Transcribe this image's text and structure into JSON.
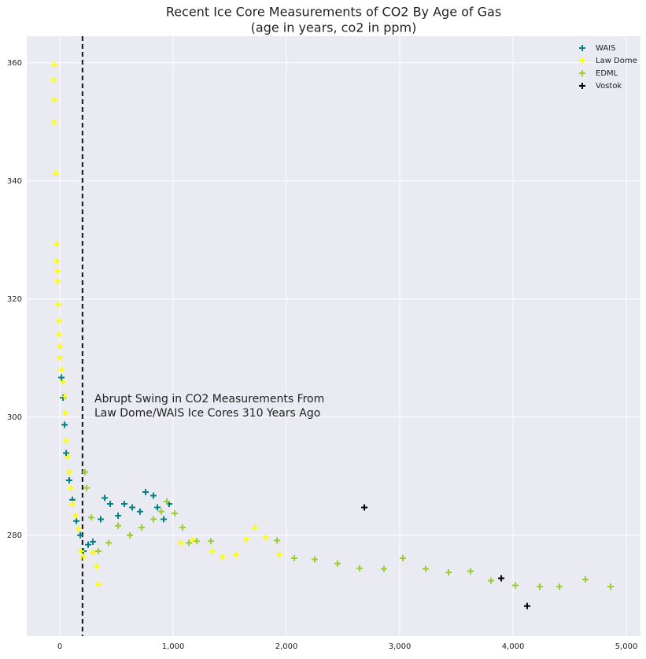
{
  "chart_data": {
    "type": "scatter",
    "title": "Recent Ice Core Measurements of CO2 By Age of Gas",
    "subtitle": "(age in years, co2 in ppm)",
    "annotation": [
      "Abrupt Swing in CO2 Measurements From",
      "Law Dome/WAIS Ice Cores 310 Years Ago"
    ],
    "reference_line": {
      "x": 200,
      "color": "#111111"
    },
    "xlim": [
      -292,
      5125
    ],
    "ylim": [
      262.9,
      364.5
    ],
    "xticks": [
      0,
      {
        "value": 1000,
        "label": "1,000"
      },
      {
        "value": 2000,
        "label": "2,000"
      },
      {
        "value": 3000,
        "label": "3,000"
      },
      {
        "value": 4000,
        "label": "4,000"
      },
      {
        "value": 5000,
        "label": "5,000"
      }
    ],
    "yticks": [
      280,
      300,
      320,
      340,
      360
    ],
    "grid": true,
    "legend": "upper right",
    "series": [
      {
        "name": "WAIS",
        "color": "#008080",
        "x": [
          14,
          28,
          42,
          56,
          83,
          111,
          146,
          181,
          208,
          250,
          292,
          361,
          396,
          444,
          514,
          569,
          639,
          708,
          757,
          826,
          861,
          917,
          965
        ],
        "values": [
          306.7,
          303.3,
          298.7,
          293.9,
          289.3,
          286,
          282.4,
          280,
          277.3,
          278.4,
          278.9,
          282.7,
          286.3,
          285.3,
          283.3,
          285.3,
          284.7,
          284,
          287.3,
          286.7,
          284.7,
          282.7,
          285.3
        ]
      },
      {
        "name": "Law Dome",
        "color": "#ffff00",
        "x": [
          -49,
          -56,
          -49,
          -49,
          -35,
          -28,
          -28,
          -21,
          -21,
          -14,
          -7,
          -7,
          0,
          0,
          14,
          28,
          42,
          49,
          56,
          69,
          83,
          97,
          111,
          139,
          167,
          188,
          208,
          292,
          326,
          340,
          1069,
          1174,
          1347,
          1438,
          1556,
          1646,
          1722,
          1819,
          1938
        ],
        "values": [
          359.7,
          357.1,
          353.7,
          349.9,
          341.3,
          329.3,
          326.4,
          324.7,
          323,
          319.1,
          316.3,
          314,
          312,
          310,
          308,
          306,
          303.5,
          300.7,
          296,
          293.3,
          290.7,
          288,
          285.3,
          283.3,
          281.1,
          277.3,
          276.3,
          277.1,
          274.7,
          271.7,
          278.7,
          279.2,
          277.3,
          276.3,
          276.7,
          279.3,
          281.3,
          279.6,
          276.7
        ]
      },
      {
        "name": "EDML",
        "color": "#9acd32",
        "x": [
          222,
          236,
          278,
          340,
          431,
          514,
          618,
          722,
          826,
          896,
          944,
          1014,
          1083,
          1139,
          1208,
          1333,
          1917,
          2069,
          2250,
          2451,
          2646,
          2861,
          3028,
          3229,
          3431,
          3625,
          3806,
          4021,
          4236,
          4410,
          4639,
          4861
        ],
        "values": [
          290.7,
          288,
          283,
          277.3,
          278.7,
          281.6,
          280,
          281.3,
          282.7,
          284,
          285.7,
          283.7,
          281.3,
          278.7,
          279,
          279,
          279.1,
          276.1,
          275.9,
          275.2,
          274.4,
          274.3,
          276.1,
          274.3,
          273.7,
          273.9,
          272.3,
          271.5,
          271.3,
          271.3,
          272.5,
          271.3
        ]
      },
      {
        "name": "Vostok",
        "color": "#000000",
        "x": [
          2688,
          3896,
          4125
        ],
        "values": [
          284.7,
          272.7,
          268.0
        ]
      }
    ]
  }
}
